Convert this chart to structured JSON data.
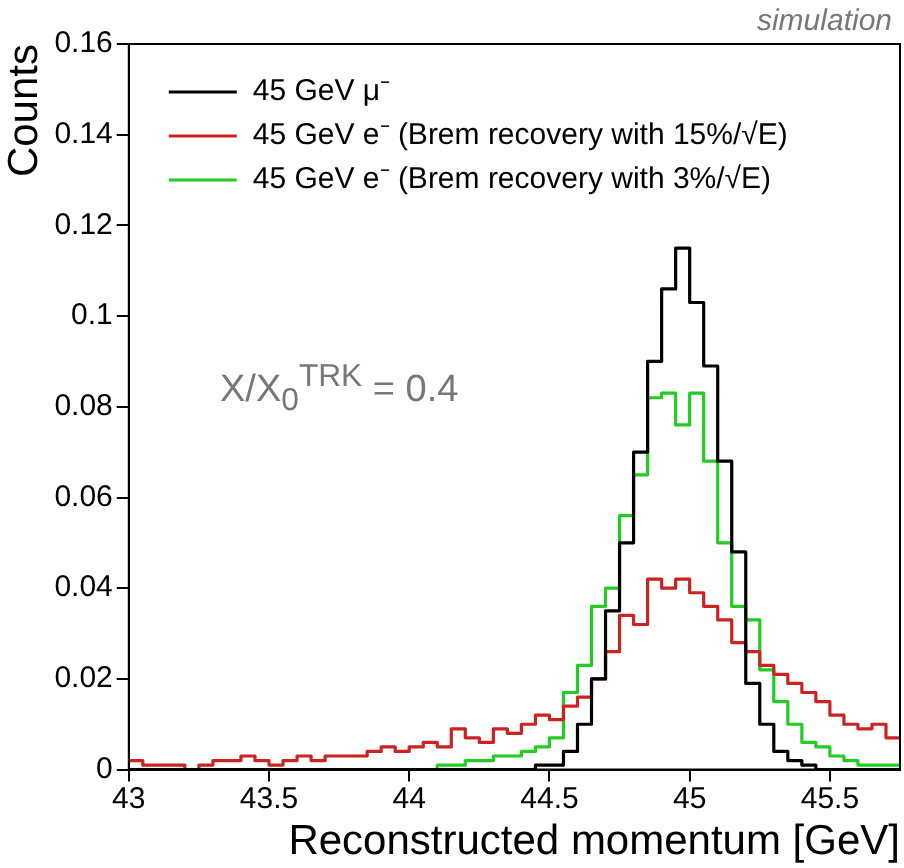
{
  "chart_data": {
    "type": "histogram",
    "xlabel": "Reconstructed momentum [GeV]",
    "ylabel": "Counts",
    "annotations": [
      "simulation",
      "X/X$_{0}$$^{TRK}$ = 0.4"
    ],
    "bins": [
      43,
      43.05,
      43.1,
      43.15,
      43.2,
      43.25,
      43.3,
      43.35,
      43.4,
      43.45,
      43.5,
      43.55,
      43.6,
      43.65,
      43.7,
      43.75,
      43.8,
      43.85,
      43.9,
      43.95,
      44,
      44.05,
      44.1,
      44.15,
      44.2,
      44.25,
      44.3,
      44.35,
      44.4,
      44.45,
      44.5,
      44.55,
      44.6,
      44.65,
      44.7,
      44.75,
      44.8,
      44.85,
      44.9,
      44.95,
      45,
      45.05,
      45.1,
      45.15,
      45.2,
      45.25,
      45.3,
      45.35,
      45.4,
      45.45,
      45.5,
      45.55,
      45.6,
      45.65,
      45.7,
      45.75
    ],
    "series": [
      {
        "name": "45 GeV μ⁻",
        "color": "#000000",
        "values": [
          0,
          0,
          0,
          0,
          0,
          0,
          0,
          0,
          0,
          0,
          0,
          0,
          0,
          0,
          0,
          0,
          0,
          0,
          0,
          0,
          0,
          0,
          0,
          0,
          0,
          0,
          0,
          0,
          0,
          0.001,
          0.001,
          0.004,
          0.01,
          0.02,
          0.035,
          0.05,
          0.07,
          0.09,
          0.106,
          0.115,
          0.103,
          0.089,
          0.068,
          0.048,
          0.019,
          0.01,
          0.004,
          0.002,
          0.001,
          0,
          0,
          0,
          0,
          0,
          0
        ]
      },
      {
        "name": "45 GeV e⁻ (Brem recovery with 15%/√E)",
        "color": "#cc2222",
        "values": [
          0.002,
          0.001,
          0.001,
          0.001,
          0,
          0.001,
          0.002,
          0.002,
          0.003,
          0.002,
          0.001,
          0.002,
          0.003,
          0.002,
          0.003,
          0.003,
          0.003,
          0.004,
          0.005,
          0.004,
          0.005,
          0.006,
          0.005,
          0.009,
          0.007,
          0.006,
          0.009,
          0.008,
          0.01,
          0.012,
          0.011,
          0.014,
          0.016,
          0.02,
          0.026,
          0.034,
          0.032,
          0.042,
          0.04,
          0.042,
          0.039,
          0.036,
          0.033,
          0.028,
          0.026,
          0.023,
          0.021,
          0.019,
          0.017,
          0.015,
          0.012,
          0.01,
          0.009,
          0.01,
          0.007
        ]
      },
      {
        "name": "45 GeV e⁻ (Brem recovery with 3%/√E)",
        "color": "#22cc22",
        "values": [
          0,
          0,
          0,
          0,
          0,
          0,
          0,
          0,
          0,
          0,
          0,
          0,
          0,
          0,
          0,
          0,
          0,
          0,
          0,
          0,
          0,
          0,
          0.001,
          0.001,
          0.002,
          0.002,
          0.003,
          0.003,
          0.004,
          0.005,
          0.007,
          0.017,
          0.023,
          0.036,
          0.04,
          0.056,
          0.065,
          0.082,
          0.083,
          0.076,
          0.083,
          0.068,
          0.05,
          0.036,
          0.033,
          0.022,
          0.015,
          0.01,
          0.006,
          0.005,
          0.003,
          0.002,
          0.001,
          0.001,
          0.001
        ]
      }
    ],
    "xlim": [
      43,
      45.75
    ],
    "xticks": [
      43,
      43.5,
      44,
      44.5,
      45,
      45.5
    ],
    "ylim": [
      0,
      0.16
    ],
    "yticks": [
      0,
      0.02,
      0.04,
      0.06,
      0.08,
      0.1,
      0.12,
      0.14,
      0.16
    ],
    "grid": false,
    "legend": "top left"
  }
}
